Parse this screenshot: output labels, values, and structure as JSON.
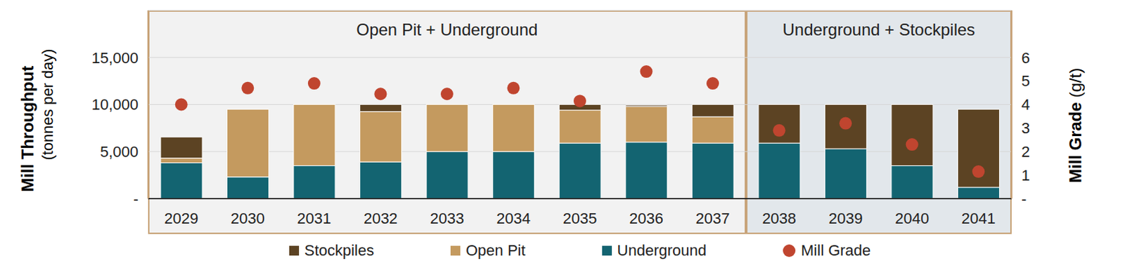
{
  "chart_data": {
    "type": "bar",
    "stacked": true,
    "grid": true,
    "legend": "bottom",
    "ylabel": {
      "title": "Mill Throughput",
      "unit": "(tonnes per day)"
    },
    "y2label": {
      "title": "Mill Grade",
      "unit": "(g/t)"
    },
    "regions": [
      {
        "label": "Open Pit + Underground",
        "from": "2029",
        "to": "2037"
      },
      {
        "label": "Underground + Stockpiles",
        "from": "2038",
        "to": "2041"
      }
    ],
    "categories": [
      "2029",
      "2030",
      "2031",
      "2032",
      "2033",
      "2034",
      "2035",
      "2036",
      "2037",
      "2038",
      "2039",
      "2040",
      "2041"
    ],
    "series": [
      {
        "name": "Stockpiles",
        "color": "#5c4323",
        "values": [
          2250,
          0,
          0,
          750,
          0,
          0,
          600,
          150,
          1300,
          4100,
          4700,
          6500,
          8300
        ]
      },
      {
        "name": "Open Pit",
        "color": "#c49a5f",
        "values": [
          500,
          7200,
          6500,
          5350,
          5000,
          5000,
          3500,
          3800,
          2800,
          0,
          0,
          0,
          0
        ]
      },
      {
        "name": "Underground",
        "color": "#136471",
        "values": [
          3800,
          2300,
          3500,
          3900,
          5000,
          5000,
          5900,
          6000,
          5900,
          5900,
          5300,
          3500,
          1200
        ]
      },
      {
        "name": "Mill Grade",
        "type": "scatter",
        "axis": "y2",
        "marker": "circle",
        "color": "#c0452f",
        "values": [
          4.0,
          4.7,
          4.9,
          4.45,
          4.45,
          4.7,
          4.15,
          5.4,
          4.9,
          2.9,
          3.2,
          2.3,
          1.15
        ]
      }
    ],
    "ylim": [
      0,
      20000
    ],
    "yticks": [
      {
        "value": 0,
        "label": "-"
      },
      {
        "value": 5000,
        "label": "5,000"
      },
      {
        "value": 10000,
        "label": "10,000"
      },
      {
        "value": 15000,
        "label": "15,000"
      }
    ],
    "y2lim": [
      0,
      8
    ],
    "y2ticks": [
      {
        "value": 0,
        "label": "-"
      },
      1,
      2,
      3,
      4,
      5,
      6
    ]
  }
}
